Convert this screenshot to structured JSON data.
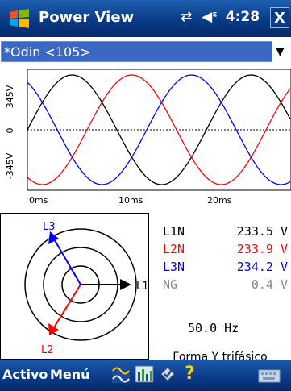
{
  "app": {
    "title": "Power View",
    "time": "4:28",
    "close_label": "X"
  },
  "device": {
    "selected": "*Odin <105>"
  },
  "scope": {
    "y_labels": [
      "345V",
      "0",
      "-345V"
    ],
    "x_labels": [
      "0ms",
      "10ms",
      "20ms"
    ],
    "colors": {
      "L1": "#000000",
      "L2": "#ff0000",
      "L3": "#0000ff"
    }
  },
  "phasor": {
    "labels": {
      "L1": "L1",
      "L2": "L2",
      "L3": "L3"
    },
    "colors": {
      "L1": "#000000",
      "L2": "#ff0000",
      "L3": "#0000ff"
    }
  },
  "readings": [
    {
      "label": "L1N",
      "value": "233.5 V",
      "color": "#000000"
    },
    {
      "label": "L2N",
      "value": "233.9 V",
      "color": "#ff0000"
    },
    {
      "label": "L3N",
      "value": "234.2 V",
      "color": "#0000ff"
    },
    {
      "label": "NG",
      "value": "0.4 V",
      "color": "#888888"
    }
  ],
  "frequency": "50.0 Hz",
  "mode": "Forma Y trifásico",
  "bottom": {
    "left_label": "Activo",
    "right_label": "Menú",
    "icons": [
      "waveform-icon",
      "harmonics-icon",
      "checklist-icon",
      "help-icon"
    ]
  }
}
